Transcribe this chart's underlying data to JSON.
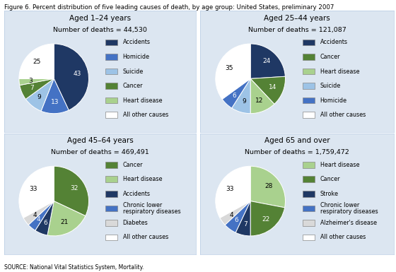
{
  "title": "Figure 6. Percent distribution of five leading causes of death, by age group: United States, preliminary 2007",
  "source": "SOURCE: National Vital Statistics System, Mortality.",
  "charts": [
    {
      "title": "Aged 1–24 years",
      "subtitle": "Number of deaths = 44,530",
      "values": [
        43,
        13,
        9,
        7,
        3,
        25
      ],
      "colors": [
        "#1f3864",
        "#4472c4",
        "#9dc3e6",
        "#548235",
        "#a9d18e",
        "#ffffff"
      ],
      "legend_labels": [
        "Accidents",
        "Homicide",
        "Suicide",
        "Cancer",
        "Heart disease",
        "All other causes"
      ]
    },
    {
      "title": "Aged 25–44 years",
      "subtitle": "Number of deaths = 121,087",
      "values": [
        24,
        14,
        12,
        9,
        6,
        35
      ],
      "colors": [
        "#1f3864",
        "#548235",
        "#a9d18e",
        "#9dc3e6",
        "#4472c4",
        "#ffffff"
      ],
      "legend_labels": [
        "Accidents",
        "Cancer",
        "Heart disease",
        "Suicide",
        "Homicide",
        "All other causes"
      ]
    },
    {
      "title": "Aged 45–64 years",
      "subtitle": "Number of deaths = 469,491",
      "values": [
        32,
        21,
        6,
        4,
        4,
        33
      ],
      "colors": [
        "#548235",
        "#a9d18e",
        "#1f3864",
        "#4472c4",
        "#d9d9d9",
        "#ffffff"
      ],
      "legend_labels": [
        "Cancer",
        "Heart disease",
        "Accidents",
        "Chronic lower\nrespiratory diseases",
        "Diabetes",
        "All other causes"
      ]
    },
    {
      "title": "Aged 65 and over",
      "subtitle": "Number of deaths = 1,759,472",
      "values": [
        28,
        22,
        7,
        6,
        4,
        33
      ],
      "colors": [
        "#a9d18e",
        "#548235",
        "#1f3864",
        "#4472c4",
        "#d9d9d9",
        "#ffffff"
      ],
      "legend_labels": [
        "Heart disease",
        "Cancer",
        "Stroke",
        "Chronic lower\nrespiratory diseases",
        "Alzheimer's disease",
        "All other causes"
      ]
    }
  ],
  "bg_color": "#dce6f1",
  "fig_bg": "#ffffff",
  "panel_edge_color": "#b8cce4"
}
